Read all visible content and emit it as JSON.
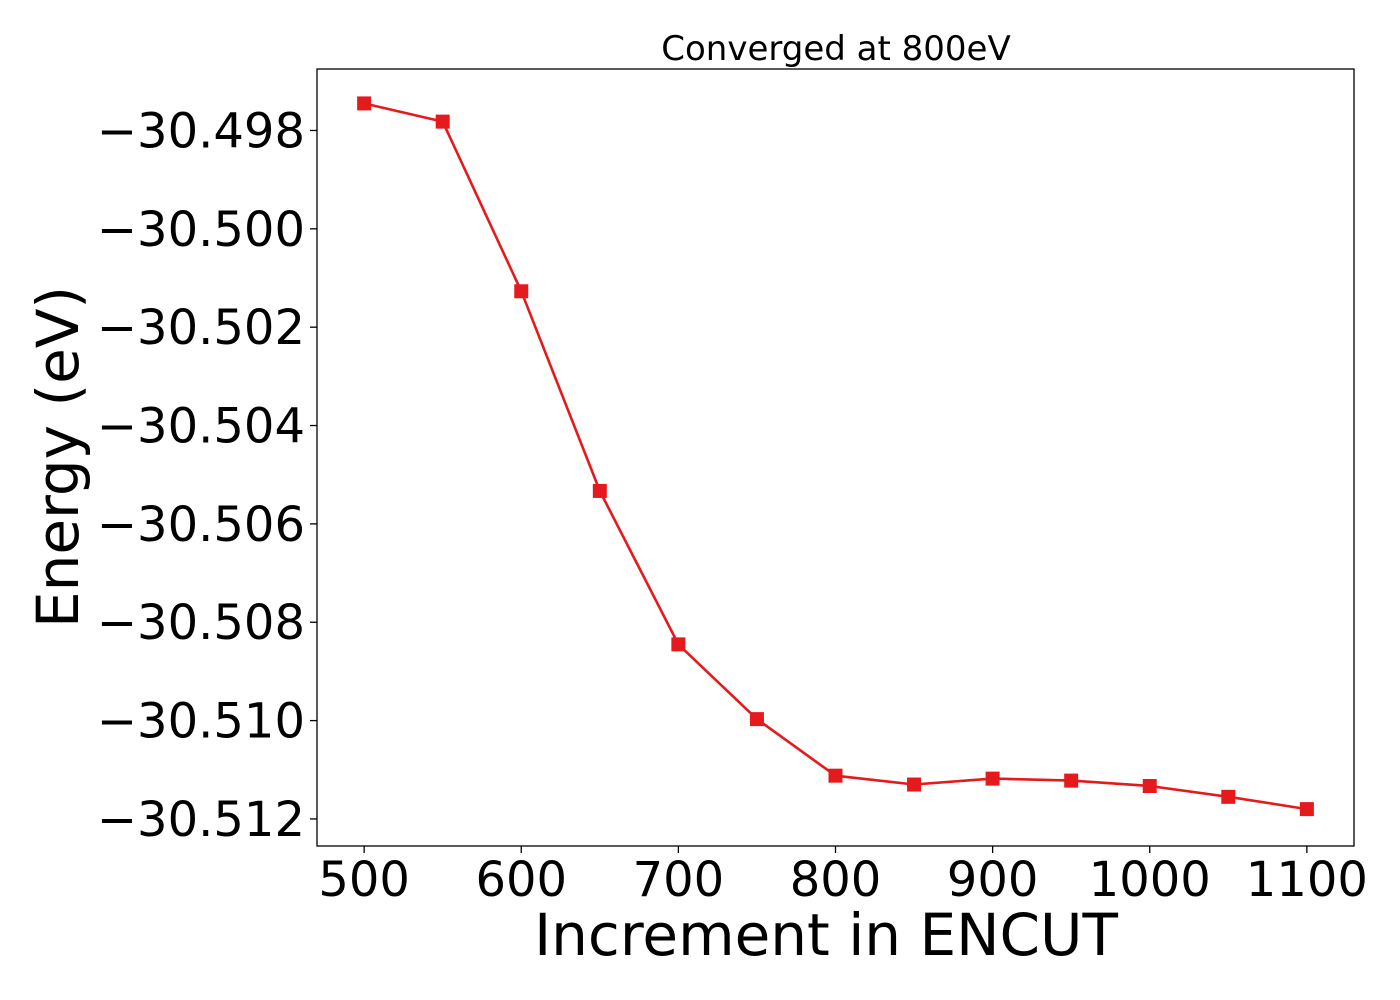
{
  "chart_data": {
    "type": "line",
    "title": "Converged at 800eV",
    "xlabel": "Increment in ENCUT",
    "ylabel": "Energy (eV)",
    "x": [
      500,
      550,
      600,
      650,
      700,
      750,
      800,
      850,
      900,
      950,
      1000,
      1050,
      1100
    ],
    "series": [
      {
        "values": [
          -30.49745,
          -30.49782,
          -30.50127,
          -30.50533,
          -30.50845,
          -30.50997,
          -30.51112,
          -30.5113,
          -30.51118,
          -30.51122,
          -30.51133,
          -30.51155,
          -30.5118
        ],
        "color": "#e41a1c",
        "marker": "square"
      }
    ],
    "xlim": [
      470,
      1130
    ],
    "ylim": [
      -30.51255,
      -30.49675
    ],
    "xticks": [
      500,
      600,
      700,
      800,
      900,
      1000,
      1100
    ],
    "xtick_labels": [
      "500",
      "600",
      "700",
      "800",
      "900",
      "1000",
      "1100"
    ],
    "yticks": [
      -30.498,
      -30.5,
      -30.502,
      -30.504,
      -30.506,
      -30.508,
      -30.51,
      -30.512
    ],
    "ytick_labels": [
      "−30.498",
      "−30.500",
      "−30.502",
      "−30.504",
      "−30.506",
      "−30.508",
      "−30.510",
      "−30.512"
    ],
    "grid": false,
    "legend": "none"
  }
}
